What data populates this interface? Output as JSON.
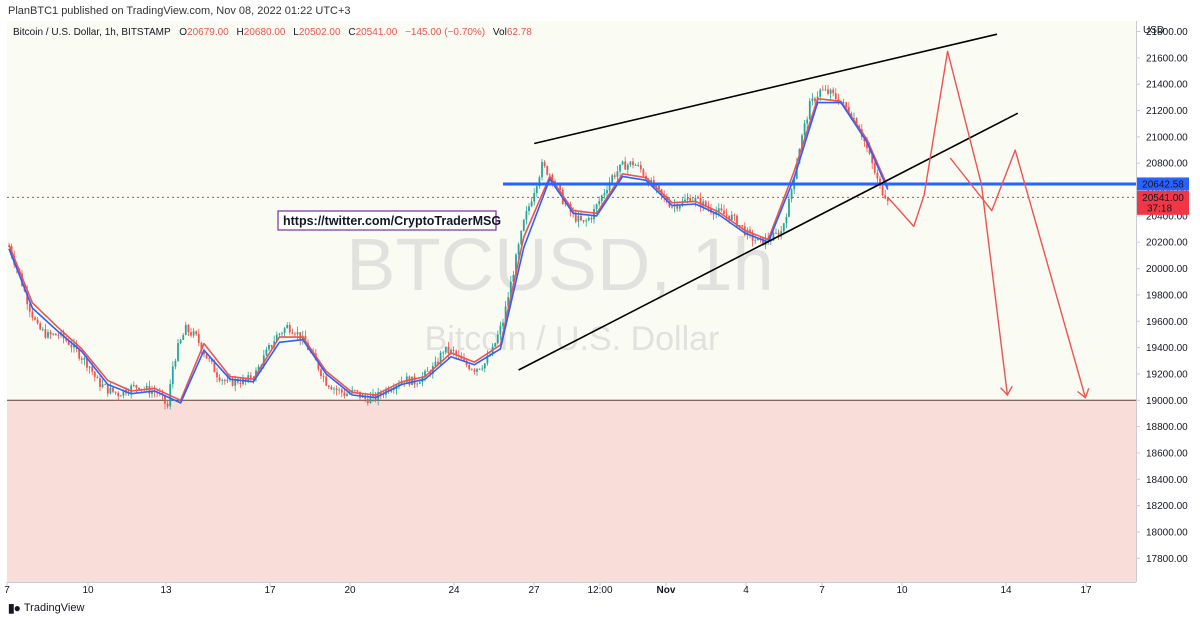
{
  "publish_info": "PlanBTC1 published on TradingView.com, Nov 08, 2022 01:22 UTC+3",
  "footer": {
    "logo_icon": "tradingview-logo-icon",
    "brand": "TradingView"
  },
  "legend": {
    "symbol": "Bitcoin / U.S. Dollar, 1h, BITSTAMP",
    "o_label": "O",
    "o_value": "20679.00",
    "h_label": "H",
    "h_value": "20680.00",
    "l_label": "L",
    "l_value": "20502.00",
    "c_label": "C",
    "c_value": "20541.00",
    "change": "−145.00 (−0.70%)",
    "vol_label": "Vol",
    "vol_value": "62.78"
  },
  "watermark": {
    "symbol": "BTCUSD, 1h",
    "description": "Bitcoin / U.S. Dollar"
  },
  "annotation_link": "https://twitter.com/CryptoTraderMSG",
  "colors": {
    "plot_bg": "#fafbf3",
    "support_zone": "#f8ddd8",
    "blue_line": "#2962ff",
    "price_badge": "#f23645",
    "projection": "#ef5350",
    "ma_red": "#f23645",
    "ma_blue": "#2962ff",
    "candle_up": "#26a69a",
    "candle_down": "#ef5350"
  },
  "chart_data": {
    "type": "candlestick",
    "currency": "USD",
    "x_tick_labels": [
      "7",
      "10",
      "13",
      "17",
      "20",
      "24",
      "27",
      "12:00",
      "Nov",
      "4",
      "7",
      "10",
      "14",
      "17"
    ],
    "y_ticks": [
      17800,
      18000,
      18200,
      18400,
      18600,
      18800,
      19000,
      19200,
      19400,
      19600,
      19800,
      20000,
      20200,
      20400,
      20600,
      20800,
      21000,
      21200,
      21400,
      21600,
      21800
    ],
    "y_range": [
      17620,
      21880
    ],
    "grid": false,
    "horizontal_line": {
      "price": 20642.58,
      "label": "20642.58"
    },
    "last_price": {
      "price": 20541.0,
      "label": "20541.00",
      "countdown": "37:18"
    },
    "support_zone": {
      "top": 19000
    },
    "price_path": [
      [
        0,
        20170
      ],
      [
        4,
        19950
      ],
      [
        8,
        19700
      ],
      [
        11,
        19550
      ],
      [
        15,
        19490
      ],
      [
        19,
        19500
      ],
      [
        23,
        19440
      ],
      [
        27,
        19350
      ],
      [
        31,
        19260
      ],
      [
        34,
        19140
      ],
      [
        38,
        19080
      ],
      [
        42,
        19050
      ],
      [
        46,
        19090
      ],
      [
        50,
        19110
      ],
      [
        53,
        19080
      ],
      [
        57,
        19060
      ],
      [
        61,
        18950
      ],
      [
        63,
        19260
      ],
      [
        65,
        19400
      ],
      [
        68,
        19540
      ],
      [
        72,
        19480
      ],
      [
        76,
        19330
      ],
      [
        80,
        19200
      ],
      [
        84,
        19130
      ],
      [
        88,
        19150
      ],
      [
        91,
        19140
      ],
      [
        95,
        19210
      ],
      [
        99,
        19360
      ],
      [
        103,
        19490
      ],
      [
        107,
        19560
      ],
      [
        110,
        19530
      ],
      [
        114,
        19430
      ],
      [
        118,
        19290
      ],
      [
        122,
        19140
      ],
      [
        126,
        19080
      ],
      [
        129,
        19050
      ],
      [
        133,
        19060
      ],
      [
        137,
        19010
      ],
      [
        141,
        19020
      ],
      [
        145,
        19080
      ],
      [
        148,
        19120
      ],
      [
        152,
        19160
      ],
      [
        156,
        19140
      ],
      [
        160,
        19190
      ],
      [
        164,
        19260
      ],
      [
        167,
        19380
      ],
      [
        171,
        19360
      ],
      [
        175,
        19280
      ],
      [
        179,
        19240
      ],
      [
        183,
        19280
      ],
      [
        186,
        19380
      ],
      [
        190,
        19600
      ],
      [
        194,
        19980
      ],
      [
        198,
        20350
      ],
      [
        202,
        20600
      ],
      [
        205,
        20780
      ],
      [
        209,
        20700
      ],
      [
        213,
        20520
      ],
      [
        217,
        20400
      ],
      [
        221,
        20340
      ],
      [
        224,
        20400
      ],
      [
        228,
        20550
      ],
      [
        232,
        20700
      ],
      [
        236,
        20780
      ],
      [
        240,
        20800
      ],
      [
        243,
        20750
      ],
      [
        247,
        20640
      ],
      [
        251,
        20550
      ],
      [
        255,
        20480
      ],
      [
        259,
        20500
      ],
      [
        262,
        20540
      ],
      [
        266,
        20500
      ],
      [
        270,
        20450
      ],
      [
        274,
        20420
      ],
      [
        278,
        20390
      ],
      [
        281,
        20330
      ],
      [
        285,
        20240
      ],
      [
        289,
        20200
      ],
      [
        293,
        20230
      ],
      [
        297,
        20280
      ],
      [
        300,
        20500
      ],
      [
        304,
        20920
      ],
      [
        308,
        21240
      ],
      [
        312,
        21350
      ],
      [
        316,
        21330
      ],
      [
        319,
        21280
      ],
      [
        323,
        21200
      ],
      [
        327,
        21080
      ],
      [
        331,
        20850
      ],
      [
        335,
        20610
      ],
      [
        338,
        20541
      ]
    ],
    "series": [
      {
        "name": "",
        "color": "#ef5350",
        "path": [
          [
            0,
            20180
          ],
          [
            9,
            19740
          ],
          [
            19,
            19550
          ],
          [
            28,
            19390
          ],
          [
            38,
            19150
          ],
          [
            47,
            19070
          ],
          [
            56,
            19090
          ],
          [
            66,
            19000
          ],
          [
            75,
            19430
          ],
          [
            85,
            19180
          ],
          [
            94,
            19160
          ],
          [
            104,
            19480
          ],
          [
            113,
            19480
          ],
          [
            122,
            19220
          ],
          [
            132,
            19060
          ],
          [
            141,
            19040
          ],
          [
            151,
            19140
          ],
          [
            160,
            19180
          ],
          [
            170,
            19360
          ],
          [
            179,
            19290
          ],
          [
            189,
            19420
          ],
          [
            198,
            20240
          ],
          [
            208,
            20700
          ],
          [
            217,
            20440
          ],
          [
            226,
            20420
          ],
          [
            236,
            20720
          ],
          [
            245,
            20690
          ],
          [
            255,
            20500
          ],
          [
            264,
            20510
          ],
          [
            273,
            20430
          ],
          [
            283,
            20290
          ],
          [
            292,
            20220
          ],
          [
            302,
            20740
          ],
          [
            311,
            21290
          ],
          [
            320,
            21270
          ],
          [
            330,
            20980
          ],
          [
            338,
            20620
          ]
        ]
      },
      {
        "name": "",
        "color": "#2962ff",
        "path": [
          [
            0,
            20150
          ],
          [
            9,
            19700
          ],
          [
            19,
            19520
          ],
          [
            28,
            19370
          ],
          [
            38,
            19120
          ],
          [
            47,
            19050
          ],
          [
            56,
            19070
          ],
          [
            66,
            18980
          ],
          [
            75,
            19380
          ],
          [
            85,
            19160
          ],
          [
            94,
            19140
          ],
          [
            104,
            19440
          ],
          [
            113,
            19460
          ],
          [
            122,
            19200
          ],
          [
            132,
            19040
          ],
          [
            141,
            19020
          ],
          [
            151,
            19120
          ],
          [
            160,
            19160
          ],
          [
            170,
            19330
          ],
          [
            179,
            19270
          ],
          [
            189,
            19390
          ],
          [
            198,
            20160
          ],
          [
            208,
            20680
          ],
          [
            217,
            20420
          ],
          [
            226,
            20400
          ],
          [
            236,
            20700
          ],
          [
            245,
            20670
          ],
          [
            255,
            20480
          ],
          [
            264,
            20490
          ],
          [
            273,
            20410
          ],
          [
            283,
            20270
          ],
          [
            292,
            20200
          ],
          [
            302,
            20690
          ],
          [
            311,
            21260
          ],
          [
            320,
            21260
          ],
          [
            330,
            20960
          ],
          [
            338,
            20600
          ]
        ]
      }
    ],
    "drawings": {
      "wedge_upper": [
        [
          202,
          20950
        ],
        [
          380,
          21780
        ]
      ],
      "wedge_lower": [
        [
          196,
          19230
        ],
        [
          388,
          21180
        ]
      ],
      "projection_path_1": [
        [
          338,
          20541
        ],
        [
          348,
          20320
        ],
        [
          352,
          20560
        ],
        [
          361,
          21650
        ],
        [
          374,
          20640
        ],
        [
          384,
          19040
        ]
      ],
      "projection_path_2": [
        [
          362,
          20840
        ],
        [
          378,
          20440
        ],
        [
          387,
          20900
        ],
        [
          414,
          19020
        ]
      ]
    }
  }
}
